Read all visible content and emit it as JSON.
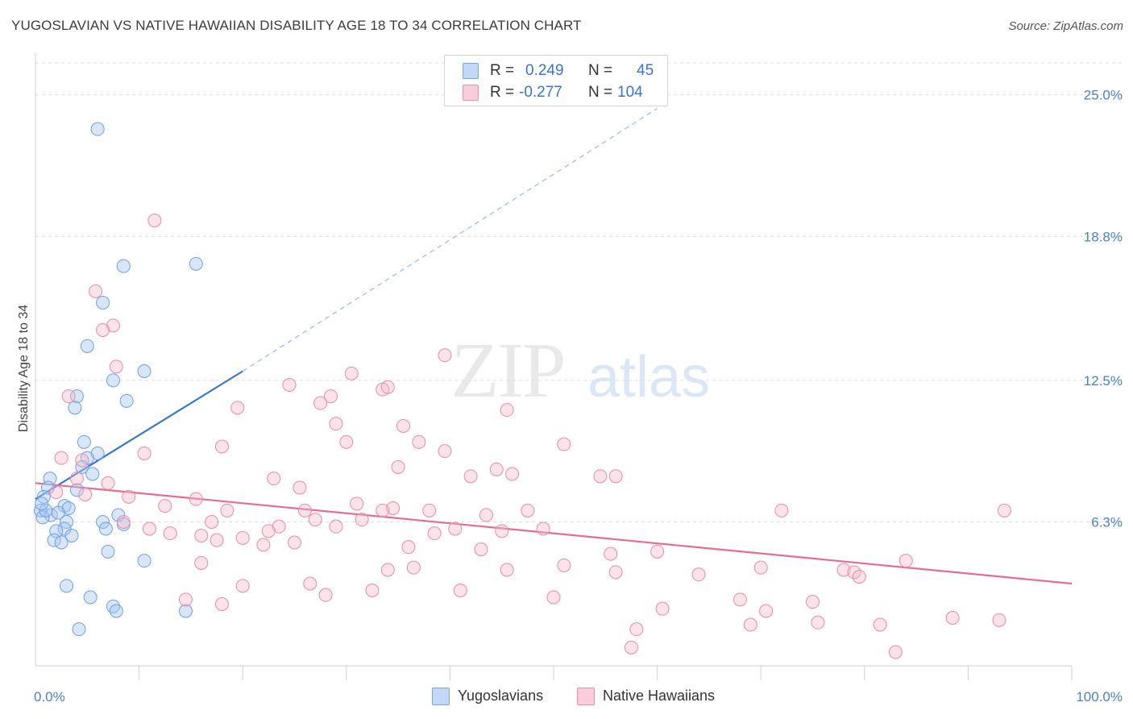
{
  "header": {
    "title": "YUGOSLAVIAN VS NATIVE HAWAIIAN DISABILITY AGE 18 TO 34 CORRELATION CHART",
    "source": "Source: ZipAtlas.com"
  },
  "watermark": {
    "zip": "ZIP",
    "atlas": "atlas"
  },
  "legend": {
    "r_label": "R =",
    "n_label": "N =",
    "rows": [
      {
        "r": "0.249",
        "n": "45",
        "color": "#a9c7f0",
        "edge": "#7aa6e4"
      },
      {
        "r": "-0.277",
        "n": "104",
        "color": "#f5b8cb",
        "edge": "#ec8fab"
      }
    ]
  },
  "bottom_legend": [
    {
      "label": "Yugoslavians",
      "color": "#c3d8f6",
      "edge": "#7aa6e4"
    },
    {
      "label": "Native Hawaiians",
      "color": "#f9cdd9",
      "edge": "#ec8fab"
    }
  ],
  "chart_data": {
    "type": "scatter",
    "title": "YUGOSLAVIAN VS NATIVE HAWAIIAN DISABILITY AGE 18 TO 34 CORRELATION CHART",
    "xlabel": "",
    "ylabel": "Disability Age 18 to 34",
    "xlim": [
      0,
      100
    ],
    "ylim": [
      0,
      26.4
    ],
    "x_tick_labels": [
      "0.0%",
      "100.0%"
    ],
    "y_ticks": [
      6.3,
      12.5,
      18.8,
      25.0
    ],
    "y_tick_labels": [
      "6.3%",
      "12.5%",
      "18.8%",
      "25.0%"
    ],
    "grid": true,
    "colors": {
      "yugoslavian": "#3a76cf",
      "hawaiian": "#e46c95",
      "tick": "#4a7fd1"
    },
    "series": [
      {
        "name": "Yugoslavians",
        "trend": {
          "x": [
            0,
            20
          ],
          "y": [
            7.3,
            12.9
          ],
          "extended_to": [
            60,
            24.4
          ]
        },
        "points": [
          [
            6.0,
            23.5
          ],
          [
            8.5,
            17.5
          ],
          [
            15.5,
            17.6
          ],
          [
            6.5,
            15.9
          ],
          [
            5.0,
            14.0
          ],
          [
            10.5,
            12.9
          ],
          [
            7.5,
            12.5
          ],
          [
            4.0,
            11.8
          ],
          [
            8.8,
            11.6
          ],
          [
            3.8,
            11.3
          ],
          [
            4.7,
            9.8
          ],
          [
            6.0,
            9.3
          ],
          [
            5.0,
            9.1
          ],
          [
            4.5,
            8.7
          ],
          [
            5.5,
            8.4
          ],
          [
            1.4,
            8.2
          ],
          [
            1.2,
            7.8
          ],
          [
            4.0,
            7.7
          ],
          [
            0.8,
            7.4
          ],
          [
            2.8,
            7.0
          ],
          [
            3.2,
            6.9
          ],
          [
            0.5,
            6.8
          ],
          [
            1.5,
            6.6
          ],
          [
            8.0,
            6.6
          ],
          [
            0.7,
            6.5
          ],
          [
            3.0,
            6.3
          ],
          [
            6.5,
            6.3
          ],
          [
            8.5,
            6.2
          ],
          [
            2.8,
            6.0
          ],
          [
            6.8,
            6.0
          ],
          [
            3.5,
            5.7
          ],
          [
            2.0,
            5.9
          ],
          [
            1.8,
            5.5
          ],
          [
            2.5,
            5.4
          ],
          [
            7.0,
            5.0
          ],
          [
            10.5,
            4.6
          ],
          [
            3.0,
            3.5
          ],
          [
            5.3,
            3.0
          ],
          [
            7.5,
            2.6
          ],
          [
            7.8,
            2.4
          ],
          [
            14.5,
            2.4
          ],
          [
            4.2,
            1.6
          ],
          [
            1.0,
            6.8
          ],
          [
            0.6,
            7.1
          ],
          [
            2.2,
            6.7
          ]
        ]
      },
      {
        "name": "Native Hawaiians",
        "trend": {
          "x": [
            0,
            100
          ],
          "y": [
            8.0,
            3.6
          ]
        },
        "points": [
          [
            11.5,
            19.5
          ],
          [
            5.8,
            16.4
          ],
          [
            7.5,
            14.9
          ],
          [
            6.5,
            14.7
          ],
          [
            7.8,
            13.1
          ],
          [
            39.5,
            13.6
          ],
          [
            30.5,
            12.8
          ],
          [
            33.5,
            12.1
          ],
          [
            34.0,
            12.2
          ],
          [
            24.5,
            12.3
          ],
          [
            3.2,
            11.8
          ],
          [
            28.5,
            11.8
          ],
          [
            27.5,
            11.5
          ],
          [
            19.5,
            11.3
          ],
          [
            35.5,
            10.5
          ],
          [
            29.0,
            10.6
          ],
          [
            45.5,
            11.2
          ],
          [
            37.0,
            9.8
          ],
          [
            30.0,
            9.8
          ],
          [
            51.0,
            9.7
          ],
          [
            18.0,
            9.6
          ],
          [
            39.5,
            9.4
          ],
          [
            10.5,
            9.3
          ],
          [
            2.5,
            9.1
          ],
          [
            4.5,
            9.0
          ],
          [
            35.0,
            8.7
          ],
          [
            44.5,
            8.6
          ],
          [
            46.0,
            8.4
          ],
          [
            56.0,
            8.3
          ],
          [
            23.0,
            8.2
          ],
          [
            42.0,
            8.3
          ],
          [
            54.5,
            8.3
          ],
          [
            25.5,
            7.8
          ],
          [
            2.0,
            7.6
          ],
          [
            4.8,
            7.5
          ],
          [
            9.0,
            7.4
          ],
          [
            12.5,
            7.0
          ],
          [
            31.0,
            7.1
          ],
          [
            38.0,
            6.8
          ],
          [
            34.5,
            6.9
          ],
          [
            47.5,
            6.8
          ],
          [
            72.0,
            6.8
          ],
          [
            43.5,
            6.6
          ],
          [
            27.0,
            6.4
          ],
          [
            31.5,
            6.4
          ],
          [
            17.0,
            6.3
          ],
          [
            23.5,
            6.1
          ],
          [
            29.0,
            6.1
          ],
          [
            49.0,
            6.0
          ],
          [
            40.5,
            6.0
          ],
          [
            45.0,
            5.9
          ],
          [
            38.5,
            5.8
          ],
          [
            13.0,
            5.8
          ],
          [
            20.0,
            5.6
          ],
          [
            8.5,
            6.3
          ],
          [
            16.0,
            5.7
          ],
          [
            17.5,
            5.5
          ],
          [
            22.0,
            5.3
          ],
          [
            25.0,
            5.4
          ],
          [
            36.0,
            5.2
          ],
          [
            43.0,
            5.1
          ],
          [
            55.5,
            4.9
          ],
          [
            60.0,
            5.0
          ],
          [
            16.0,
            4.5
          ],
          [
            34.0,
            4.2
          ],
          [
            36.5,
            4.3
          ],
          [
            45.5,
            4.2
          ],
          [
            51.0,
            4.4
          ],
          [
            70.0,
            4.3
          ],
          [
            78.0,
            4.2
          ],
          [
            79.0,
            4.1
          ],
          [
            56.0,
            4.1
          ],
          [
            64.0,
            4.0
          ],
          [
            79.5,
            3.9
          ],
          [
            84.0,
            4.6
          ],
          [
            93.5,
            6.8
          ],
          [
            20.0,
            3.5
          ],
          [
            26.5,
            3.6
          ],
          [
            28.0,
            3.1
          ],
          [
            32.5,
            3.3
          ],
          [
            41.0,
            3.3
          ],
          [
            18.0,
            2.7
          ],
          [
            14.5,
            2.9
          ],
          [
            50.0,
            3.0
          ],
          [
            60.5,
            2.5
          ],
          [
            68.0,
            2.9
          ],
          [
            75.0,
            2.8
          ],
          [
            69.0,
            1.8
          ],
          [
            81.5,
            1.8
          ],
          [
            58.0,
            1.6
          ],
          [
            70.5,
            2.4
          ],
          [
            57.5,
            0.8
          ],
          [
            88.5,
            2.1
          ],
          [
            93.0,
            2.0
          ],
          [
            75.5,
            1.9
          ],
          [
            83.0,
            0.6
          ],
          [
            4.0,
            8.2
          ],
          [
            7.0,
            8.0
          ],
          [
            15.5,
            7.3
          ],
          [
            26.0,
            6.8
          ],
          [
            33.5,
            6.8
          ],
          [
            11.0,
            6.0
          ],
          [
            18.5,
            6.8
          ],
          [
            22.5,
            5.9
          ]
        ]
      }
    ]
  }
}
